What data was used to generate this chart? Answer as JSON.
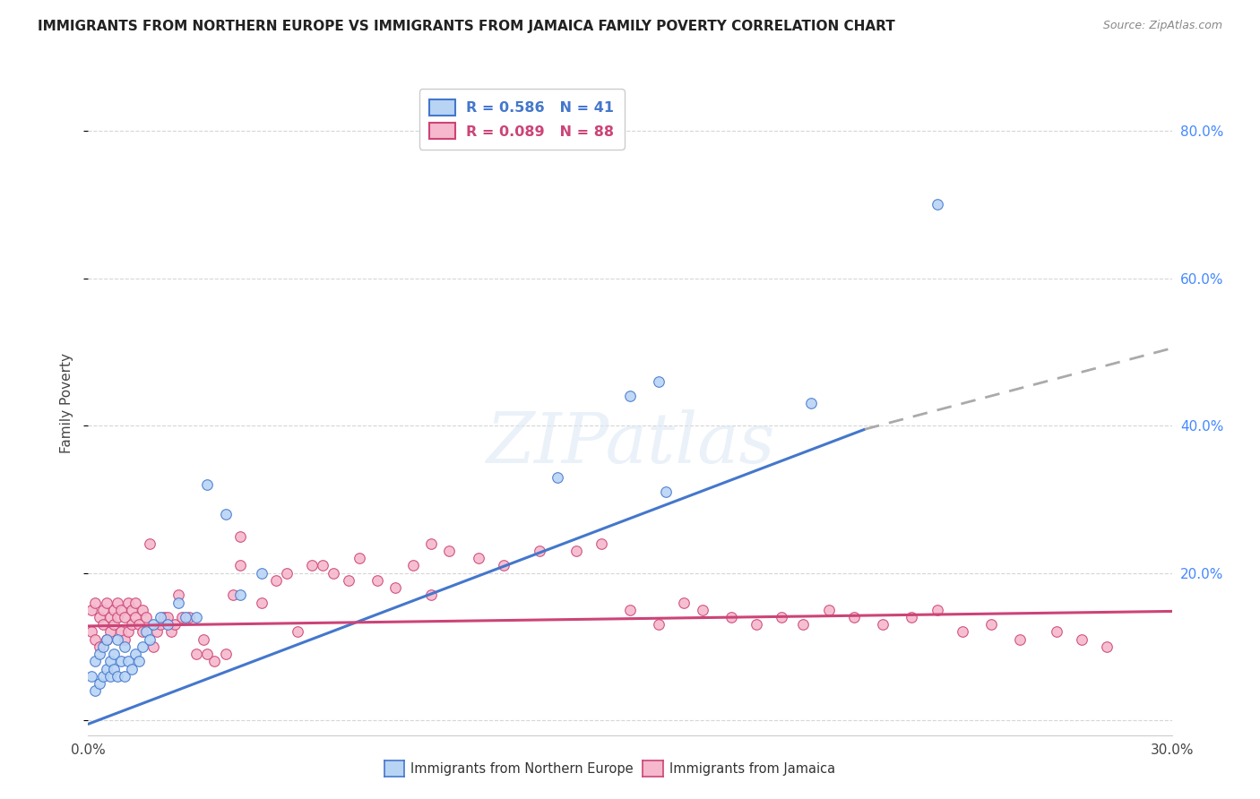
{
  "title": "IMMIGRANTS FROM NORTHERN EUROPE VS IMMIGRANTS FROM JAMAICA FAMILY POVERTY CORRELATION CHART",
  "source": "Source: ZipAtlas.com",
  "ylabel": "Family Poverty",
  "xlim": [
    0.0,
    0.3
  ],
  "ylim": [
    -0.02,
    0.88
  ],
  "series1_color": "#b8d4f5",
  "series1_line_color": "#4477cc",
  "series2_color": "#f5b8cc",
  "series2_line_color": "#cc4477",
  "series1_label": "Immigrants from Northern Europe",
  "series2_label": "Immigrants from Jamaica",
  "r1": 0.586,
  "n1": 41,
  "r2": 0.089,
  "n2": 88,
  "watermark": "ZIPatlas",
  "trend1_x0": 0.0,
  "trend1_y0": -0.005,
  "trend1_x1": 0.215,
  "trend1_y1": 0.395,
  "trend1_dash_x0": 0.215,
  "trend1_dash_y0": 0.395,
  "trend1_dash_x1": 0.3,
  "trend1_dash_y1": 0.505,
  "trend2_x0": 0.0,
  "trend2_y0": 0.128,
  "trend2_x1": 0.3,
  "trend2_y1": 0.148,
  "series1_x": [
    0.001,
    0.002,
    0.002,
    0.003,
    0.003,
    0.004,
    0.004,
    0.005,
    0.005,
    0.006,
    0.006,
    0.007,
    0.007,
    0.008,
    0.008,
    0.009,
    0.01,
    0.01,
    0.011,
    0.012,
    0.013,
    0.014,
    0.015,
    0.016,
    0.017,
    0.018,
    0.02,
    0.022,
    0.025,
    0.027,
    0.03,
    0.033,
    0.038,
    0.042,
    0.048,
    0.13,
    0.15,
    0.158,
    0.16,
    0.2,
    0.235
  ],
  "series1_y": [
    0.06,
    0.04,
    0.08,
    0.05,
    0.09,
    0.06,
    0.1,
    0.07,
    0.11,
    0.06,
    0.08,
    0.07,
    0.09,
    0.06,
    0.11,
    0.08,
    0.06,
    0.1,
    0.08,
    0.07,
    0.09,
    0.08,
    0.1,
    0.12,
    0.11,
    0.13,
    0.14,
    0.13,
    0.16,
    0.14,
    0.14,
    0.32,
    0.28,
    0.17,
    0.2,
    0.33,
    0.44,
    0.46,
    0.31,
    0.43,
    0.7
  ],
  "series2_x": [
    0.001,
    0.001,
    0.002,
    0.002,
    0.003,
    0.003,
    0.004,
    0.004,
    0.005,
    0.005,
    0.006,
    0.006,
    0.007,
    0.007,
    0.008,
    0.008,
    0.009,
    0.009,
    0.01,
    0.01,
    0.011,
    0.011,
    0.012,
    0.012,
    0.013,
    0.013,
    0.014,
    0.015,
    0.015,
    0.016,
    0.017,
    0.018,
    0.019,
    0.02,
    0.021,
    0.022,
    0.023,
    0.024,
    0.025,
    0.026,
    0.03,
    0.032,
    0.035,
    0.038,
    0.04,
    0.042,
    0.048,
    0.052,
    0.058,
    0.062,
    0.068,
    0.075,
    0.08,
    0.09,
    0.095,
    0.1,
    0.108,
    0.115,
    0.125,
    0.135,
    0.142,
    0.15,
    0.158,
    0.165,
    0.17,
    0.178,
    0.185,
    0.192,
    0.198,
    0.205,
    0.212,
    0.22,
    0.228,
    0.235,
    0.242,
    0.25,
    0.258,
    0.268,
    0.275,
    0.282,
    0.042,
    0.055,
    0.065,
    0.072,
    0.028,
    0.033,
    0.085,
    0.095
  ],
  "series2_y": [
    0.12,
    0.15,
    0.11,
    0.16,
    0.1,
    0.14,
    0.13,
    0.15,
    0.11,
    0.16,
    0.14,
    0.12,
    0.15,
    0.13,
    0.16,
    0.14,
    0.12,
    0.15,
    0.11,
    0.14,
    0.16,
    0.12,
    0.15,
    0.13,
    0.14,
    0.16,
    0.13,
    0.15,
    0.12,
    0.14,
    0.24,
    0.1,
    0.12,
    0.13,
    0.14,
    0.14,
    0.12,
    0.13,
    0.17,
    0.14,
    0.09,
    0.11,
    0.08,
    0.09,
    0.17,
    0.21,
    0.16,
    0.19,
    0.12,
    0.21,
    0.2,
    0.22,
    0.19,
    0.21,
    0.24,
    0.23,
    0.22,
    0.21,
    0.23,
    0.23,
    0.24,
    0.15,
    0.13,
    0.16,
    0.15,
    0.14,
    0.13,
    0.14,
    0.13,
    0.15,
    0.14,
    0.13,
    0.14,
    0.15,
    0.12,
    0.13,
    0.11,
    0.12,
    0.11,
    0.1,
    0.25,
    0.2,
    0.21,
    0.19,
    0.14,
    0.09,
    0.18,
    0.17
  ]
}
